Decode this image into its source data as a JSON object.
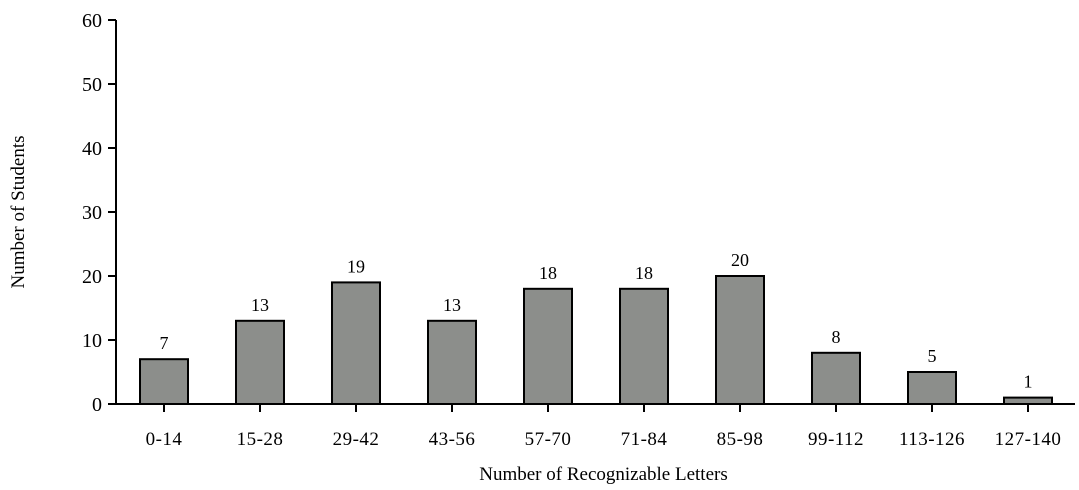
{
  "chart_data": {
    "type": "bar",
    "title": "",
    "xlabel": "Number of Recognizable Letters",
    "ylabel": "Number of Students",
    "categories": [
      "0-14",
      "15-28",
      "29-42",
      "43-56",
      "57-70",
      "71-84",
      "85-98",
      "99-112",
      "113-126",
      "127-140"
    ],
    "values": [
      7,
      13,
      19,
      13,
      18,
      18,
      20,
      8,
      5,
      1
    ],
    "value_labels": [
      "7",
      "13",
      "19",
      "13",
      "18",
      "18",
      "20",
      "8",
      "5",
      "1"
    ],
    "ylim": [
      0,
      60
    ],
    "yticks": [
      0,
      10,
      20,
      30,
      40,
      50,
      60
    ],
    "ytick_labels": [
      "0",
      "10",
      "20",
      "30",
      "40",
      "50",
      "60"
    ],
    "grid": false,
    "legend": "none",
    "bar_color": "#8c8e8b",
    "bar_edge_color": "#000000"
  }
}
